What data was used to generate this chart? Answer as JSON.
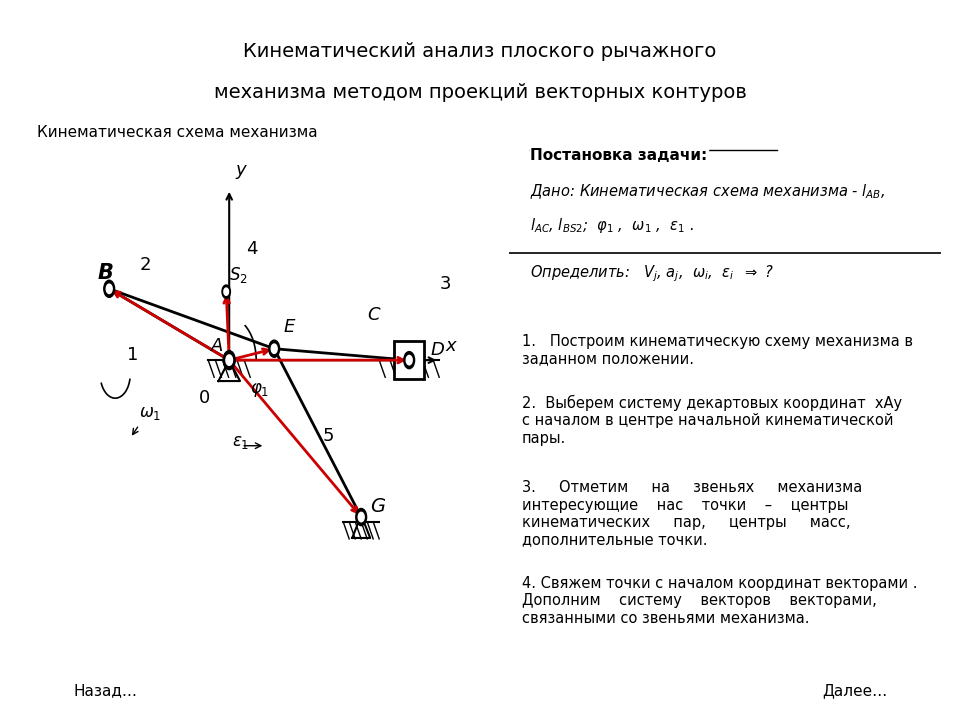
{
  "title": "Кинематический анализ плоского рычажного\nмеханизма методом проекций векторных контуров",
  "subtitle": "Кинематическая схема механизма",
  "bg_header": "#c8c8c8",
  "bg_main": "#ffffff",
  "btn_color": "#b0d8e8",
  "red": "#dd0000",
  "black": "#000000",
  "A": [
    0.0,
    0.0
  ],
  "B": [
    -1.8,
    0.7
  ],
  "E": [
    0.7,
    0.1
  ],
  "S2": [
    0.0,
    0.7
  ],
  "D": [
    2.8,
    0.0
  ],
  "G": [
    2.1,
    -1.5
  ],
  "origin_label": "A"
}
